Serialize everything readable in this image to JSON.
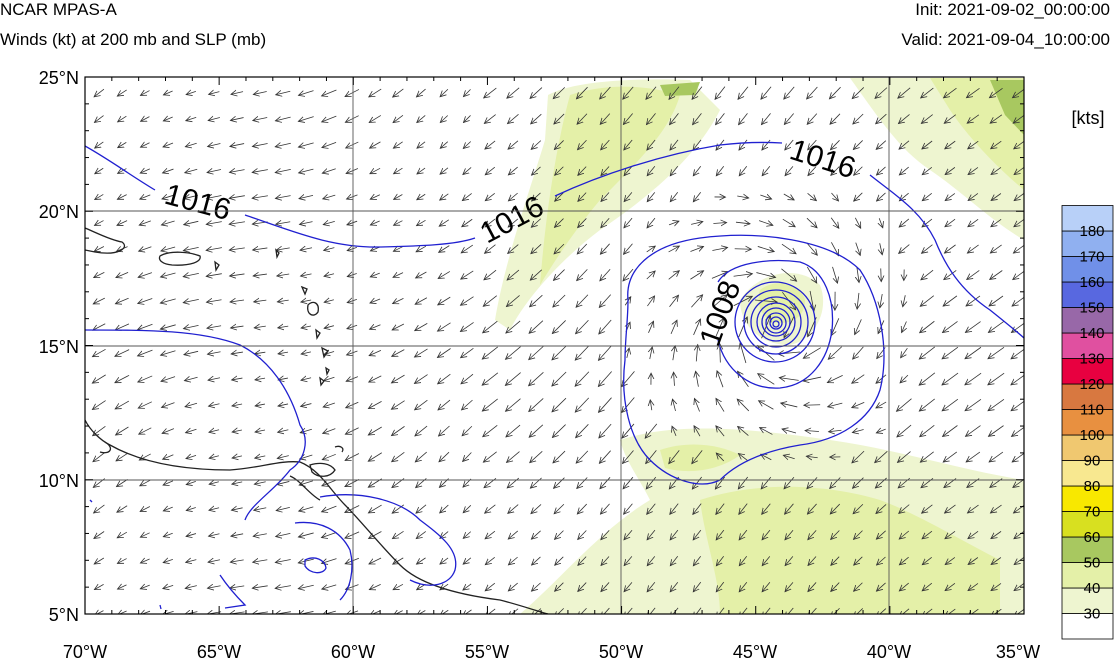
{
  "header": {
    "model": "NCAR MPAS-A",
    "subtitle": "Winds (kt) at 200 mb and SLP (mb)",
    "init": "Init: 2021-09-02_00:00:00",
    "valid": "Valid: 2021-09-04_10:00:00"
  },
  "axes": {
    "lon_ticks": [
      "70°W",
      "65°W",
      "60°W",
      "55°W",
      "50°W",
      "45°W",
      "40°W",
      "35°W"
    ],
    "lat_ticks": [
      "25°N",
      "20°N",
      "15°N",
      "10°N",
      "5°N"
    ],
    "lon_range": [
      -70,
      -35
    ],
    "lat_range": [
      5,
      25
    ]
  },
  "colorbar": {
    "units": "[kts]",
    "levels": [
      "30",
      "40",
      "50",
      "60",
      "70",
      "80",
      "90",
      "100",
      "110",
      "120",
      "130",
      "140",
      "150",
      "160",
      "170",
      "180"
    ],
    "colors": [
      "#ffffff",
      "#eef5d0",
      "#e4f0a8",
      "#a8c860",
      "#d8e020",
      "#f8e800",
      "#f8e890",
      "#f0c870",
      "#e89040",
      "#d87840",
      "#e80040",
      "#e050a0",
      "#9868a8",
      "#5868e0",
      "#7090e8",
      "#90b0f0",
      "#b8d0f8"
    ]
  },
  "contours": {
    "labels": [
      "1016",
      "1016",
      "1016",
      "1008"
    ],
    "line_color": "#2020d0"
  },
  "storm_center": {
    "lon": -44.3,
    "lat": 15.7
  }
}
